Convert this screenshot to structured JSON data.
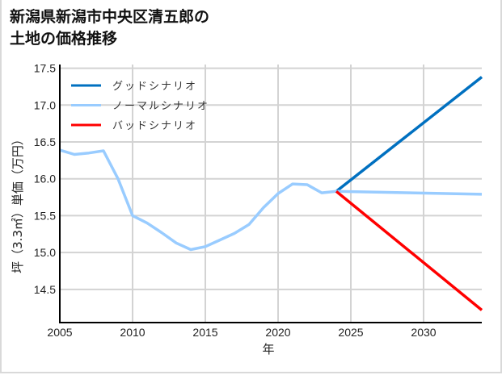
{
  "title_line1": "新潟県新潟市中央区清五郎の",
  "title_line2": "土地の価格推移",
  "chart_data": {
    "type": "line",
    "title": "新潟県新潟市中央区清五郎の土地の価格推移",
    "xlabel": "年",
    "ylabel": "坪（3.3㎡）単価（万円）",
    "xlim": [
      2005,
      2034
    ],
    "ylim": [
      14.05,
      17.55
    ],
    "xticks": [
      2005,
      2010,
      2015,
      2020,
      2025,
      2030
    ],
    "yticks": [
      14.5,
      15.0,
      15.5,
      16.0,
      16.5,
      17.0,
      17.5
    ],
    "grid": true,
    "legend_position": "upper left",
    "series": [
      {
        "name": "グッドシナリオ",
        "color": "#0070c0",
        "x": [
          2024,
          2034
        ],
        "y": [
          15.83,
          17.38
        ]
      },
      {
        "name": "ノーマルシナリオ",
        "color": "#99ccff",
        "x": [
          2005,
          2006,
          2007,
          2008,
          2009,
          2010,
          2011,
          2012,
          2013,
          2014,
          2015,
          2016,
          2017,
          2018,
          2019,
          2020,
          2021,
          2022,
          2023,
          2024,
          2034
        ],
        "y": [
          16.39,
          16.33,
          16.35,
          16.38,
          16.0,
          15.5,
          15.4,
          15.27,
          15.13,
          15.04,
          15.08,
          15.17,
          15.26,
          15.38,
          15.61,
          15.8,
          15.93,
          15.92,
          15.81,
          15.83,
          15.79
        ]
      },
      {
        "name": "バッドシナリオ",
        "color": "#ff0000",
        "x": [
          2024,
          2034
        ],
        "y": [
          15.83,
          14.22
        ]
      }
    ]
  }
}
